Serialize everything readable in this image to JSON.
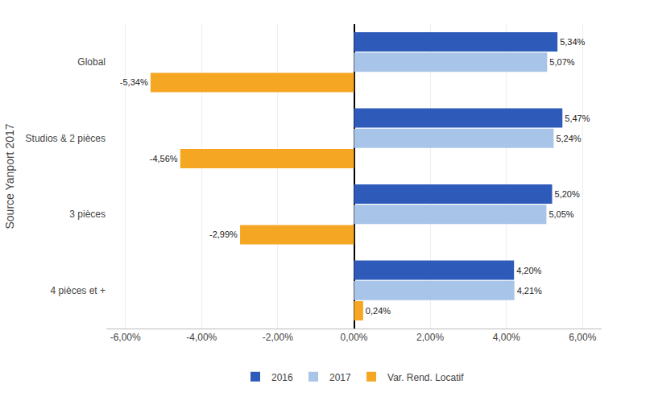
{
  "chart_data": {
    "type": "bar",
    "orientation": "horizontal",
    "ylabel": "Source Yanport 2017",
    "categories": [
      "4 pièces et +",
      "3 pièces",
      "Studios & 2 pièces",
      "Global"
    ],
    "series": [
      {
        "name": "2016",
        "color": "#2E5BBA",
        "values": [
          4.2,
          5.2,
          5.47,
          5.34
        ],
        "value_labels": [
          "4,20%",
          "5,20%",
          "5,47%",
          "5,34%"
        ]
      },
      {
        "name": "2017",
        "color": "#A8C4E8",
        "values": [
          4.21,
          5.05,
          5.24,
          5.07
        ],
        "value_labels": [
          "4,21%",
          "5,05%",
          "5,24%",
          "5,07%"
        ]
      },
      {
        "name": "Var. Rend. Locatif",
        "color": "#F5A623",
        "values": [
          0.24,
          -2.99,
          -4.56,
          -5.34
        ],
        "value_labels": [
          "0,24%",
          "-2,99%",
          "-4,56%",
          "-5,34%"
        ]
      }
    ],
    "xlim": [
      -6.5,
      6.5
    ],
    "xticks": [
      {
        "value": -6,
        "label": "-6,00%"
      },
      {
        "value": -4,
        "label": "-4,00%"
      },
      {
        "value": -2,
        "label": "-2,00%"
      },
      {
        "value": 0,
        "label": "0,00%"
      },
      {
        "value": 2,
        "label": "2,00%"
      },
      {
        "value": 4,
        "label": "4,00%"
      },
      {
        "value": 6,
        "label": "6,00%"
      }
    ],
    "grid": true,
    "legend": "bottom",
    "data_labels": true
  }
}
